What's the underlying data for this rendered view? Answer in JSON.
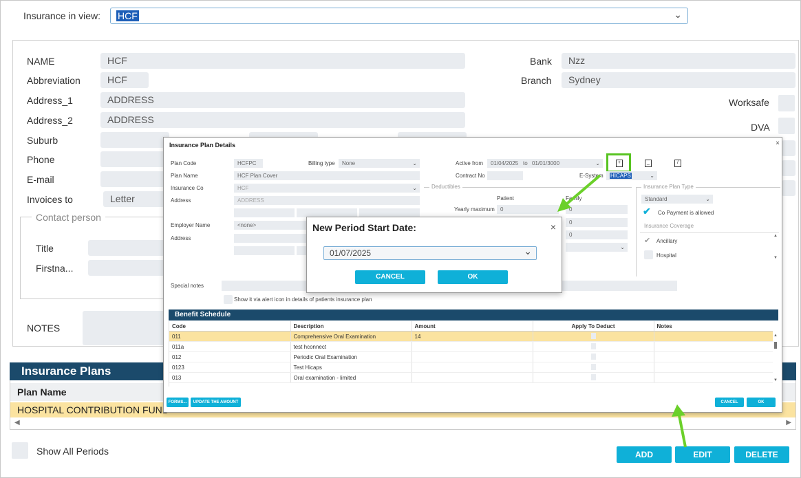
{
  "header": {
    "label": "Insurance in view:",
    "selected": "HCF"
  },
  "form": {
    "name_label": "NAME",
    "name_value": "HCF",
    "abbr_label": "Abbreviation",
    "abbr_value": "HCF",
    "addr1_label": "Address_1",
    "addr1_value": "ADDRESS",
    "addr2_label": "Address_2",
    "addr2_value": "ADDRESS",
    "suburb_label": "Suburb",
    "phone_label": "Phone",
    "email_label": "E-mail",
    "invoices_label": "Invoices to",
    "invoices_value": "Letter",
    "contact_legend": "Contact person",
    "title_label": "Title",
    "firstname_label": "Firstna...",
    "notes_label": "NOTES",
    "bank_label": "Bank",
    "bank_value": "Nzz",
    "branch_label": "Branch",
    "branch_value": "Sydney",
    "worksafe_label": "Worksafe",
    "dva_label": "DVA"
  },
  "plans": {
    "title": "Insurance Plans",
    "column": "Plan Name",
    "rows": [
      "HOSPITAL CONTRIBUTION FUND"
    ]
  },
  "footer": {
    "show_all": "Show All Periods",
    "add": "ADD",
    "edit": "EDIT",
    "delete": "DELETE"
  },
  "plan_dialog": {
    "title": "Insurance Plan Details",
    "plan_code_label": "Plan Code",
    "plan_code": "HCFPC",
    "billing_label": "Billing type",
    "billing_value": "None",
    "plan_name_label": "Plan Name",
    "plan_name": "HCF Plan Cover",
    "ins_co_label": "Insurance Co",
    "ins_co": "HCF",
    "address_label": "Address",
    "address_value": "ADDRESS",
    "employer_label": "Employer Name",
    "employer_value": "<none>",
    "address2_label": "Address",
    "active_label": "Active from",
    "active_from": "01/04/2025",
    "to_label": "to",
    "active_to": "01/01/3000",
    "contract_label": "Contract No",
    "esystem_label": "E-System",
    "esystem_value": "HICAPS",
    "deductibles_legend": "Deductibles",
    "patient_col": "Patient",
    "family_col": "Family",
    "yearly_label": "Yearly maximum",
    "yearly_patient": "0",
    "yearly_family": "0",
    "row2_value": "0",
    "row3_value": "0",
    "plan_type_legend": "Insurance Plan Type",
    "plan_type_value": "Standard",
    "copay_label": "Co Payment is allowed",
    "coverage_legend": "Insurance Coverage",
    "coverage": [
      "Ancillary",
      "Hospital"
    ],
    "special_notes_label": "Special notes",
    "alert_label": "Show it via alert icon in details of patients insurance plan",
    "benefit_title": "Benefit Schedule",
    "columns": [
      "Code",
      "Description",
      "Amount",
      "Apply To Deduct",
      "Notes"
    ],
    "rows": [
      {
        "code": "011",
        "desc": "Comprehensive Oral Examination",
        "amount": "14"
      },
      {
        "code": "011a",
        "desc": "test hconnect",
        "amount": ""
      },
      {
        "code": "012",
        "desc": "Periodic Oral Examination",
        "amount": ""
      },
      {
        "code": "0123",
        "desc": "Test Hicaps",
        "amount": ""
      },
      {
        "code": "013",
        "desc": "Oral examination - limited",
        "amount": ""
      }
    ],
    "forms_btn": "FORMS...",
    "update_btn": "UPDATE THE AMOUNT",
    "cancel_btn": "CANCEL",
    "ok_btn": "OK"
  },
  "period_dialog": {
    "title": "New Period Start Date:",
    "value": "01/07/2025",
    "cancel": "CANCEL",
    "ok": "OK"
  },
  "colors": {
    "accent": "#0fb0d8",
    "header_bg": "#1b4a6b",
    "selected_row": "#fbe3a0",
    "highlight": "#58c322"
  }
}
